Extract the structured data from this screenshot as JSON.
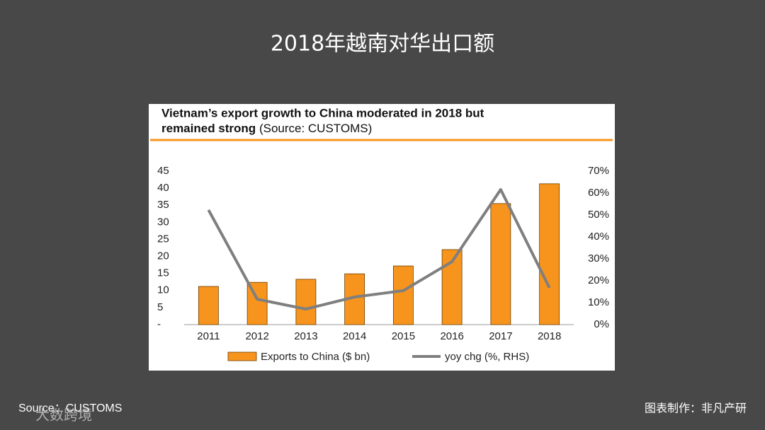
{
  "slide": {
    "title": "2018年越南对华出口额",
    "source": "Source：CUSTOMS",
    "watermark": "大数跨境",
    "credit": "图表制作：非凡产研"
  },
  "chart_data": {
    "type": "bar",
    "title": [
      "Vietnam’s export growth to China moderated in 2018 but",
      "remained strong"
    ],
    "subtitle": "(Source: CUSTOMS)",
    "categories": [
      "2011",
      "2012",
      "2013",
      "2014",
      "2015",
      "2016",
      "2017",
      "2018"
    ],
    "series": [
      {
        "name": "Exports to China ($ bn)",
        "type": "bar",
        "color": "#f7941d",
        "values": [
          11.2,
          12.4,
          13.3,
          14.9,
          17.2,
          22,
          35.5,
          41.3
        ]
      },
      {
        "name": "yoy chg (%, RHS)",
        "type": "line",
        "axis": "y2",
        "color": "#7f7f7f",
        "values": [
          52.3,
          11.6,
          7.1,
          12.6,
          15.5,
          28.7,
          61.6,
          16.8
        ]
      }
    ],
    "ylim": [
      0,
      45
    ],
    "yticks": [
      {
        "value": 0,
        "label": "-"
      },
      5,
      10,
      15,
      20,
      25,
      30,
      35,
      40,
      45
    ],
    "y2lim": [
      0,
      70
    ],
    "y2ticks": [
      {
        "value": 0,
        "label": "0%"
      },
      {
        "value": 10,
        "label": "10%"
      },
      {
        "value": 20,
        "label": "20%"
      },
      {
        "value": 30,
        "label": "30%"
      },
      {
        "value": 40,
        "label": "40%"
      },
      {
        "value": 50,
        "label": "50%"
      },
      {
        "value": 60,
        "label": "60%"
      },
      {
        "value": 70,
        "label": "70%"
      }
    ],
    "grid": false
  }
}
